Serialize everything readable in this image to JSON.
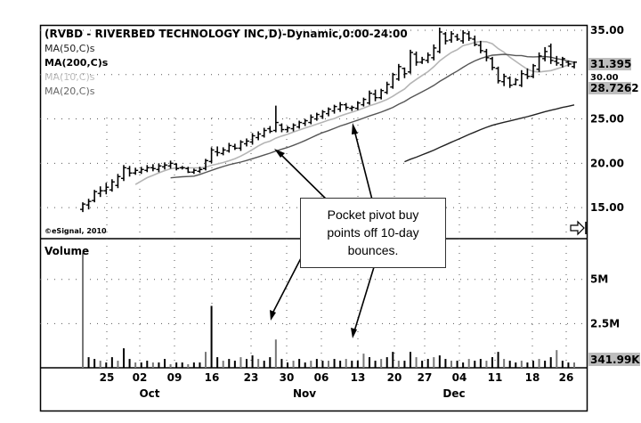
{
  "chart_data": {
    "type": "bar",
    "title": "(RVBD - RIVERBED TECHNOLOGY INC,D)-Dynamic,0:00-24:00",
    "indicators": [
      "MA(50,C)s",
      "MA(200,C)s",
      "MA(10,C)s",
      "MA(20,C)s"
    ],
    "watermark": "©eSignal, 2010",
    "price_axis": {
      "ticks": [
        "35.00",
        "25.00",
        "20.00",
        "15.00"
      ],
      "last_labels": [
        "31.395",
        "30.00",
        "28.7262"
      ],
      "ylim": [
        11.5,
        35.6
      ]
    },
    "volume_panel": {
      "title": "Volume",
      "ticks": [
        "5M",
        "2.5M"
      ],
      "last_label": "341.99K",
      "ylim": [
        0,
        7000000
      ]
    },
    "x_axis": {
      "days": [
        "25",
        "02",
        "09",
        "16",
        "23",
        "30",
        "06",
        "13",
        "20",
        "27",
        "04",
        "11",
        "18",
        "26"
      ],
      "months": [
        "Oct",
        "Nov",
        "Dec"
      ]
    },
    "annotation": {
      "text_lines": [
        "Pocket pivot buy",
        "points off 10-day",
        "bounces."
      ]
    },
    "bars": [
      [
        14.5,
        15.6,
        14.8,
        15.4
      ],
      [
        14.8,
        16.0,
        15.3,
        15.7
      ],
      [
        15.6,
        17.0,
        15.8,
        16.8
      ],
      [
        16.2,
        17.4,
        16.6,
        16.9
      ],
      [
        16.5,
        17.8,
        16.9,
        17.3
      ],
      [
        16.8,
        18.2,
        17.0,
        17.9
      ],
      [
        17.2,
        18.8,
        17.5,
        18.5
      ],
      [
        18.0,
        19.8,
        18.3,
        19.5
      ],
      [
        18.5,
        19.7,
        19.4,
        18.9
      ],
      [
        18.7,
        19.5,
        18.9,
        19.2
      ],
      [
        18.8,
        19.6,
        19.0,
        19.3
      ],
      [
        19.0,
        19.8,
        19.2,
        19.5
      ],
      [
        19.1,
        19.9,
        19.5,
        19.4
      ],
      [
        19.0,
        20.0,
        19.3,
        19.7
      ],
      [
        19.3,
        20.1,
        19.6,
        19.8
      ],
      [
        19.4,
        20.3,
        19.7,
        20.0
      ],
      [
        19.2,
        20.0,
        19.9,
        19.4
      ],
      [
        19.3,
        19.7,
        19.5,
        19.5
      ],
      [
        18.9,
        19.6,
        19.4,
        19.0
      ],
      [
        18.8,
        19.4,
        19.0,
        19.2
      ],
      [
        18.9,
        19.6,
        19.1,
        19.3
      ],
      [
        19.2,
        20.5,
        19.4,
        20.3
      ],
      [
        20.0,
        21.8,
        20.2,
        21.5
      ],
      [
        20.8,
        21.9,
        21.3,
        21.2
      ],
      [
        20.9,
        21.8,
        21.1,
        21.5
      ],
      [
        21.2,
        22.3,
        21.4,
        22.0
      ],
      [
        21.5,
        22.2,
        21.9,
        21.7
      ],
      [
        21.4,
        22.6,
        21.7,
        22.4
      ],
      [
        21.9,
        22.8,
        22.2,
        22.5
      ],
      [
        22.1,
        23.4,
        22.4,
        23.1
      ],
      [
        22.6,
        23.6,
        22.9,
        23.3
      ],
      [
        22.9,
        24.0,
        23.1,
        23.7
      ],
      [
        23.4,
        24.2,
        23.9,
        23.6
      ],
      [
        23.5,
        26.5,
        23.7,
        24.6
      ],
      [
        23.5,
        24.5,
        24.3,
        23.8
      ],
      [
        23.5,
        24.2,
        23.8,
        24.0
      ],
      [
        23.6,
        24.5,
        23.9,
        24.3
      ],
      [
        23.9,
        24.8,
        24.1,
        24.6
      ],
      [
        24.2,
        25.0,
        24.5,
        24.8
      ],
      [
        24.4,
        25.5,
        24.6,
        25.2
      ],
      [
        24.8,
        25.7,
        25.0,
        25.5
      ],
      [
        25.0,
        26.0,
        25.3,
        25.8
      ],
      [
        25.3,
        26.3,
        25.6,
        26.1
      ],
      [
        25.6,
        26.6,
        25.9,
        26.4
      ],
      [
        25.8,
        26.9,
        26.1,
        26.6
      ],
      [
        26.0,
        26.8,
        26.6,
        26.3
      ],
      [
        25.9,
        26.5,
        26.2,
        26.3
      ],
      [
        26.0,
        27.0,
        26.2,
        26.8
      ],
      [
        26.4,
        27.4,
        26.6,
        27.2
      ],
      [
        26.6,
        28.2,
        26.8,
        27.9
      ],
      [
        27.0,
        28.3,
        27.8,
        27.4
      ],
      [
        27.2,
        28.4,
        27.4,
        28.2
      ],
      [
        27.8,
        29.2,
        28.0,
        28.9
      ],
      [
        28.4,
        30.2,
        28.6,
        30.0
      ],
      [
        29.3,
        31.2,
        29.5,
        30.9
      ],
      [
        29.6,
        30.8,
        30.7,
        30.1
      ],
      [
        30.1,
        32.8,
        30.3,
        32.5
      ],
      [
        31.0,
        32.6,
        32.3,
        31.4
      ],
      [
        31.2,
        32.0,
        31.4,
        31.7
      ],
      [
        31.3,
        32.5,
        31.6,
        32.2
      ],
      [
        31.6,
        33.4,
        31.9,
        33.0
      ],
      [
        32.4,
        35.3,
        32.6,
        34.8
      ],
      [
        33.4,
        34.8,
        34.6,
        33.8
      ],
      [
        33.6,
        34.9,
        33.9,
        34.6
      ],
      [
        33.8,
        34.6,
        34.3,
        34.0
      ],
      [
        33.5,
        35.0,
        33.8,
        34.7
      ],
      [
        33.8,
        34.9,
        34.6,
        34.1
      ],
      [
        33.2,
        34.4,
        34.0,
        33.4
      ],
      [
        32.4,
        33.8,
        33.3,
        32.7
      ],
      [
        31.5,
        32.9,
        32.6,
        31.9
      ],
      [
        30.5,
        32.0,
        31.8,
        30.8
      ],
      [
        29.0,
        30.9,
        30.7,
        29.3
      ],
      [
        28.7,
        30.1,
        29.2,
        29.8
      ],
      [
        28.5,
        29.8,
        29.6,
        28.8
      ],
      [
        28.8,
        29.6,
        28.9,
        29.4
      ],
      [
        28.6,
        30.5,
        28.8,
        30.1
      ],
      [
        29.5,
        30.7,
        30.0,
        29.8
      ],
      [
        29.6,
        31.2,
        29.8,
        31.0
      ],
      [
        30.3,
        32.5,
        30.6,
        32.1
      ],
      [
        31.5,
        33.1,
        31.8,
        32.6
      ],
      [
        31.2,
        33.5,
        33.2,
        31.6
      ],
      [
        31.0,
        32.1,
        31.5,
        31.3
      ],
      [
        30.8,
        32.0,
        31.1,
        31.8
      ],
      [
        30.9,
        31.6,
        31.4,
        31.2
      ],
      [
        30.7,
        31.5,
        30.9,
        31.4
      ]
    ],
    "volume": [
      6.5,
      0.6,
      0.5,
      0.4,
      0.3,
      0.6,
      0.4,
      1.1,
      0.5,
      0.3,
      0.3,
      0.4,
      0.3,
      0.3,
      0.5,
      0.2,
      0.3,
      0.3,
      0.2,
      0.3,
      0.3,
      0.9,
      3.5,
      0.6,
      0.4,
      0.5,
      0.4,
      0.6,
      0.5,
      0.7,
      0.5,
      0.4,
      0.6,
      1.6,
      0.5,
      0.3,
      0.4,
      0.5,
      0.3,
      0.4,
      0.5,
      0.4,
      0.4,
      0.5,
      0.4,
      0.5,
      0.4,
      0.4,
      0.8,
      0.6,
      0.4,
      0.5,
      0.6,
      0.9,
      0.4,
      0.4,
      0.9,
      0.6,
      0.4,
      0.5,
      0.6,
      0.7,
      0.5,
      0.4,
      0.4,
      0.3,
      0.5,
      0.4,
      0.5,
      0.4,
      0.6,
      0.9,
      0.5,
      0.4,
      0.3,
      0.4,
      0.3,
      0.4,
      0.5,
      0.4,
      0.6,
      1.0,
      0.4,
      0.3,
      0.3
    ]
  }
}
